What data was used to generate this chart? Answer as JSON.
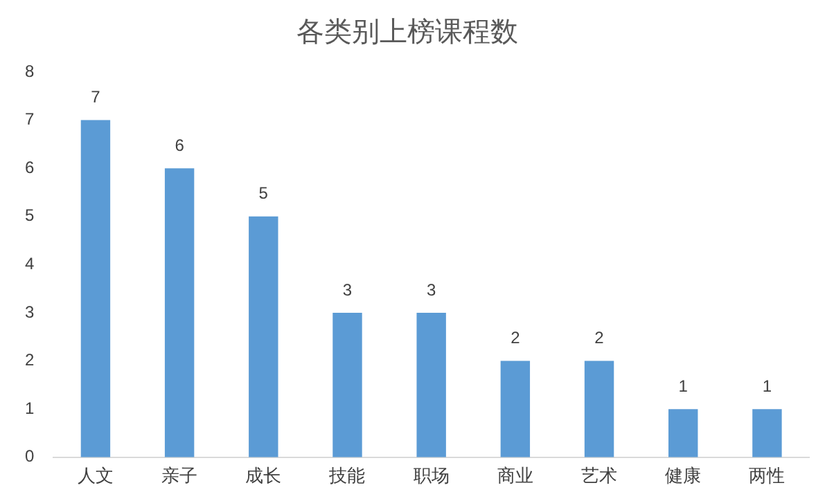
{
  "chart_data": {
    "type": "bar",
    "title": "各类别上榜课程数",
    "categories": [
      "人文",
      "亲子",
      "成长",
      "技能",
      "职场",
      "商业",
      "艺术",
      "健康",
      "两性"
    ],
    "values": [
      7,
      6,
      5,
      3,
      3,
      2,
      2,
      1,
      1
    ],
    "color": "#5b9bd5",
    "ylim": [
      0,
      8
    ],
    "yticks": [
      0,
      1,
      2,
      3,
      4,
      5,
      6,
      7,
      8
    ],
    "grid": false,
    "legend": false,
    "data_labels": true
  }
}
